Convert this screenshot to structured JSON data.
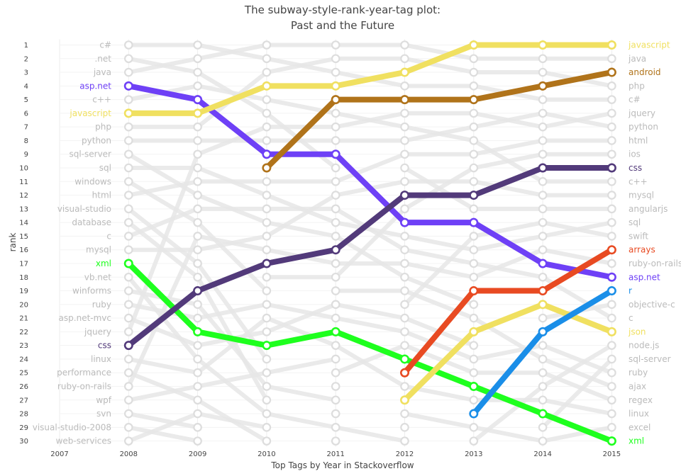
{
  "chart_data": {
    "type": "line",
    "title": "The subway-style-rank-year-tag plot:",
    "subtitle": "Past and the Future",
    "xlabel": "Top Tags by Year in Stackoverflow",
    "ylabel": "rank",
    "x_ticks": [
      2007,
      2008,
      2009,
      2010,
      2011,
      2012,
      2013,
      2014,
      2015
    ],
    "y_ticks": [
      1,
      2,
      3,
      4,
      5,
      6,
      7,
      8,
      9,
      10,
      11,
      12,
      13,
      14,
      15,
      16,
      17,
      18,
      19,
      20,
      21,
      22,
      23,
      24,
      25,
      26,
      27,
      28,
      29,
      30
    ],
    "xlim": [
      2007,
      2015
    ],
    "ylim": [
      30,
      1
    ],
    "grid": true,
    "colors": {
      "inactive_label": "#bbbbbb",
      "background_line": "#e6e6e6",
      "node_ring": "#dddddd",
      "axis_text": "#444444"
    },
    "left_labels": [
      "c#",
      ".net",
      "java",
      "asp.net",
      "c++",
      "javascript",
      "php",
      "python",
      "sql-server",
      "sql",
      "windows",
      "html",
      "visual-studio",
      "database",
      "c",
      "mysql",
      "xml",
      "vb.net",
      "winforms",
      "ruby",
      "asp.net-mvc",
      "jquery",
      "css",
      "linux",
      "performance",
      "ruby-on-rails",
      "wpf",
      "svn",
      "visual-studio-2008",
      "web-services"
    ],
    "right_labels": [
      "javascript",
      "java",
      "android",
      "php",
      "c#",
      "jquery",
      "python",
      "html",
      "ios",
      "css",
      "c++",
      "mysql",
      "angularjs",
      "sql",
      "swift",
      "arrays",
      "ruby-on-rails",
      "asp.net",
      "r",
      "objective-c",
      "c",
      "json",
      "node.js",
      "sql-server",
      "ruby",
      "ajax",
      "regex",
      "linux",
      "excel",
      "xml"
    ],
    "highlighted_series": [
      {
        "name": "asp.net",
        "color": "#6e40f6",
        "x": [
          2008,
          2009,
          2010,
          2011,
          2012,
          2013,
          2014,
          2015
        ],
        "y": [
          4,
          5,
          9,
          9,
          14,
          14,
          17,
          18
        ]
      },
      {
        "name": "javascript",
        "color": "#f0e060",
        "x": [
          2008,
          2009,
          2010,
          2011,
          2012,
          2013,
          2014,
          2015
        ],
        "y": [
          6,
          6,
          4,
          4,
          3,
          1,
          1,
          1
        ]
      },
      {
        "name": "xml",
        "color": "#1eff1e",
        "x": [
          2008,
          2009,
          2010,
          2011,
          2012,
          2013,
          2014,
          2015
        ],
        "y": [
          17,
          22,
          23,
          22,
          24,
          26,
          28,
          30
        ]
      },
      {
        "name": "css",
        "color": "#523a7a",
        "x": [
          2008,
          2009,
          2010,
          2011,
          2012,
          2013,
          2014,
          2015
        ],
        "y": [
          23,
          19,
          17,
          16,
          12,
          12,
          10,
          10
        ]
      },
      {
        "name": "android",
        "color": "#b0731a",
        "x": [
          2010,
          2011,
          2012,
          2013,
          2014,
          2015
        ],
        "y": [
          10,
          5,
          5,
          5,
          4,
          3
        ]
      },
      {
        "name": "arrays",
        "color": "#e84a22",
        "x": [
          2012,
          2013,
          2014,
          2015
        ],
        "y": [
          25,
          19,
          19,
          16
        ]
      },
      {
        "name": "json",
        "color": "#f0e060",
        "x": [
          2012,
          2013,
          2014,
          2015
        ],
        "y": [
          27,
          22,
          20,
          22
        ]
      },
      {
        "name": "r",
        "color": "#1a8ee8",
        "x": [
          2013,
          2014,
          2015
        ],
        "y": [
          28,
          22,
          19
        ]
      }
    ],
    "background_series": [
      {
        "x": [
          2008,
          2009,
          2010,
          2011,
          2012,
          2013,
          2014,
          2015
        ],
        "y": [
          1,
          1,
          2,
          3,
          4,
          4,
          5,
          5
        ]
      },
      {
        "x": [
          2008,
          2009,
          2010,
          2011
        ],
        "y": [
          2,
          3,
          6,
          10
        ]
      },
      {
        "x": [
          2008,
          2009,
          2010,
          2011,
          2012,
          2013,
          2014,
          2015
        ],
        "y": [
          3,
          2,
          1,
          1,
          1,
          2,
          2,
          2
        ]
      },
      {
        "x": [
          2008,
          2009,
          2010,
          2011,
          2012,
          2013,
          2014,
          2015
        ],
        "y": [
          5,
          4,
          5,
          6,
          7,
          8,
          11,
          11
        ]
      },
      {
        "x": [
          2008,
          2009,
          2010,
          2011,
          2012,
          2013,
          2014,
          2015
        ],
        "y": [
          7,
          7,
          3,
          2,
          2,
          3,
          3,
          4
        ]
      },
      {
        "x": [
          2008,
          2009,
          2010,
          2011,
          2012,
          2013,
          2014,
          2015
        ],
        "y": [
          8,
          8,
          8,
          8,
          8,
          7,
          6,
          7
        ]
      },
      {
        "x": [
          2008,
          2009,
          2010,
          2011,
          2012,
          2013
        ],
        "y": [
          9,
          12,
          14,
          15,
          18,
          20
        ]
      },
      {
        "x": [
          2008,
          2009,
          2010,
          2011,
          2012,
          2013,
          2014,
          2015
        ],
        "y": [
          10,
          10,
          12,
          14,
          15,
          16,
          15,
          14
        ]
      },
      {
        "x": [
          2008,
          2009,
          2010
        ],
        "y": [
          11,
          14,
          19
        ]
      },
      {
        "x": [
          2008,
          2009,
          2010,
          2011,
          2012,
          2013,
          2014,
          2015
        ],
        "y": [
          12,
          11,
          11,
          11,
          9,
          9,
          8,
          8
        ]
      },
      {
        "x": [
          2008,
          2009,
          2010
        ],
        "y": [
          13,
          17,
          24
        ]
      },
      {
        "x": [
          2008,
          2009,
          2010
        ],
        "y": [
          14,
          18,
          27
        ]
      },
      {
        "x": [
          2008,
          2009,
          2010,
          2011,
          2012,
          2013,
          2014,
          2015
        ],
        "y": [
          15,
          13,
          13,
          13,
          16,
          17,
          18,
          21
        ]
      },
      {
        "x": [
          2008,
          2009,
          2010,
          2011,
          2012,
          2013,
          2014,
          2015
        ],
        "y": [
          16,
          16,
          15,
          12,
          11,
          11,
          12,
          12
        ]
      },
      {
        "x": [
          2008,
          2009,
          2010,
          2011,
          2012
        ],
        "y": [
          18,
          24,
          28,
          29,
          30
        ]
      },
      {
        "x": [
          2008,
          2009,
          2010,
          2011
        ],
        "y": [
          19,
          20,
          26,
          27
        ]
      },
      {
        "x": [
          2008,
          2009,
          2010,
          2011,
          2012,
          2013,
          2014,
          2015
        ],
        "y": [
          20,
          21,
          20,
          21,
          22,
          24,
          23,
          25
        ]
      },
      {
        "x": [
          2008,
          2009,
          2010,
          2011,
          2012,
          2013
        ],
        "y": [
          21,
          23,
          22,
          20,
          21,
          23
        ]
      },
      {
        "x": [
          2008,
          2009,
          2010,
          2011,
          2012,
          2013,
          2014,
          2015
        ],
        "y": [
          22,
          9,
          7,
          7,
          6,
          6,
          7,
          6
        ]
      },
      {
        "x": [
          2008,
          2009,
          2010,
          2011,
          2012,
          2013,
          2014,
          2015
        ],
        "y": [
          24,
          25,
          21,
          23,
          26,
          27,
          27,
          28
        ]
      },
      {
        "x": [
          2008,
          2009,
          2010
        ],
        "y": [
          25,
          27,
          30
        ]
      },
      {
        "x": [
          2008,
          2009,
          2010,
          2011,
          2012,
          2013,
          2014,
          2015
        ],
        "y": [
          26,
          15,
          16,
          17,
          17,
          18,
          16,
          17
        ]
      },
      {
        "x": [
          2008,
          2009,
          2010,
          2011
        ],
        "y": [
          27,
          26,
          25,
          24
        ]
      },
      {
        "x": [
          2008,
          2009
        ],
        "y": [
          28,
          29
        ]
      },
      {
        "x": [
          2008,
          2009
        ],
        "y": [
          29,
          30
        ]
      },
      {
        "x": [
          2008,
          2009,
          2010
        ],
        "y": [
          30,
          28,
          29
        ]
      },
      {
        "x": [
          2010,
          2011,
          2012,
          2013,
          2014,
          2015
        ],
        "y": [
          18,
          18,
          13,
          10,
          9,
          9
        ]
      },
      {
        "x": [
          2011,
          2012,
          2013,
          2014,
          2015
        ],
        "y": [
          19,
          19,
          21,
          24,
          26
        ]
      },
      {
        "x": [
          2011,
          2012,
          2013,
          2014,
          2015
        ],
        "y": [
          25,
          23,
          25,
          25,
          27
        ]
      },
      {
        "x": [
          2012,
          2013,
          2014,
          2015
        ],
        "y": [
          10,
          13,
          13,
          13
        ]
      },
      {
        "x": [
          2012,
          2013,
          2014,
          2015
        ],
        "y": [
          20,
          15,
          14,
          15
        ]
      },
      {
        "x": [
          2012,
          2013,
          2014,
          2015
        ],
        "y": [
          28,
          29,
          30,
          29
        ]
      },
      {
        "x": [
          2013,
          2014,
          2015
        ],
        "y": [
          30,
          26,
          23
        ]
      },
      {
        "x": [
          2014,
          2015
        ],
        "y": [
          21,
          20
        ]
      },
      {
        "x": [
          2014,
          2015
        ],
        "y": [
          29,
          24
        ]
      }
    ]
  }
}
